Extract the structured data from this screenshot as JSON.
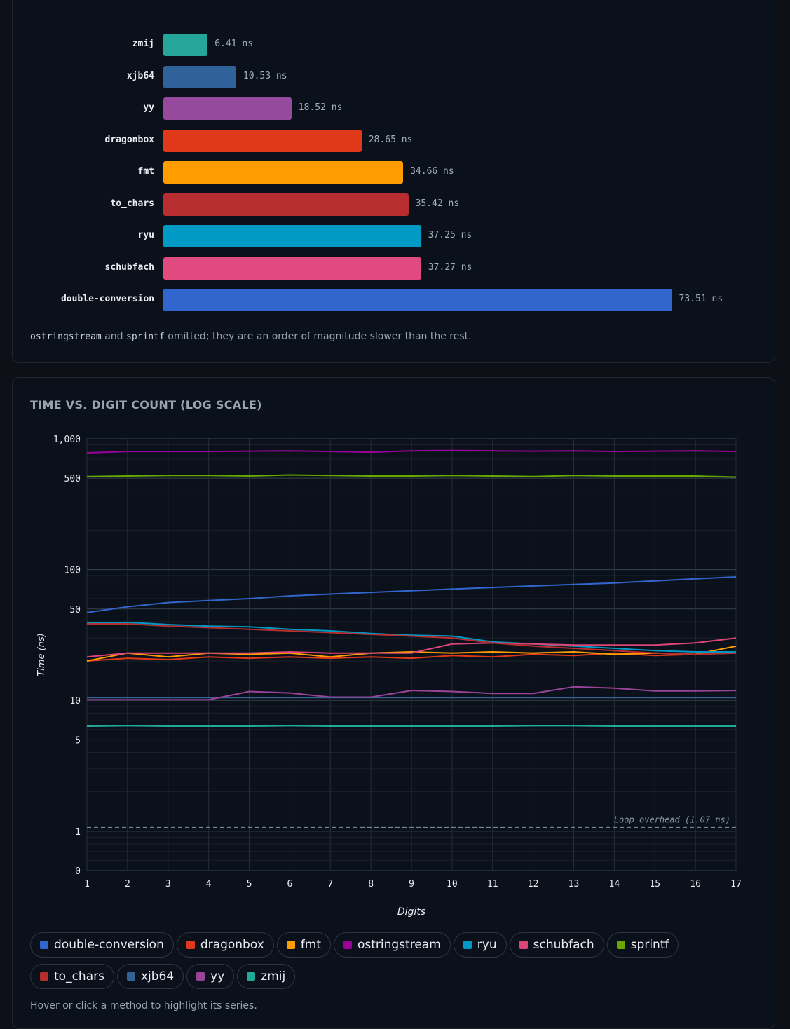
{
  "bar_chart": {
    "type": "bar",
    "orientation": "horizontal",
    "unit": "ns",
    "categories": [
      "zmij",
      "xjb64",
      "yy",
      "dragonbox",
      "fmt",
      "to_chars",
      "ryu",
      "schubfach",
      "double-conversion"
    ],
    "values": [
      6.41,
      10.53,
      18.52,
      28.65,
      34.66,
      35.42,
      37.25,
      37.27,
      73.51
    ],
    "value_labels": [
      "6.41 ns",
      "10.53 ns",
      "18.52 ns",
      "28.65 ns",
      "34.66 ns",
      "35.42 ns",
      "37.25 ns",
      "37.27 ns",
      "73.51 ns"
    ],
    "colors": [
      "#26a69a",
      "#2f6299",
      "#964a9e",
      "#e0391a",
      "#ff9d00",
      "#b82d30",
      "#009ac4",
      "#e04a7e",
      "#3366cc"
    ]
  },
  "note": {
    "code1": "ostringstream",
    "text1": " and ",
    "code2": "sprintf",
    "text2": " omitted; they are an order of magnitude slower than the rest."
  },
  "line_section_title": "TIME VS. DIGIT COUNT (LOG SCALE)",
  "chart_data": {
    "type": "line",
    "title": "TIME VS. DIGIT COUNT (LOG SCALE)",
    "xlabel": "Digits",
    "ylabel": "Time (ns)",
    "x": [
      1,
      2,
      3,
      4,
      5,
      6,
      7,
      8,
      9,
      10,
      11,
      12,
      13,
      14,
      15,
      16,
      17
    ],
    "y_scale": "log",
    "ylim": [
      0.5,
      1000
    ],
    "y_ticks": [
      {
        "value": 1000,
        "label": "1,000"
      },
      {
        "value": 500,
        "label": "500"
      },
      {
        "value": 100,
        "label": "100"
      },
      {
        "value": 50,
        "label": "50"
      },
      {
        "value": 10,
        "label": "10"
      },
      {
        "value": 5,
        "label": "5"
      },
      {
        "value": 1,
        "label": "1"
      },
      {
        "value": 0.5,
        "label": "0"
      }
    ],
    "grid": true,
    "annotation": {
      "text": "Loop overhead (1.07 ns)",
      "value": 1.07
    },
    "series": [
      {
        "name": "double-conversion",
        "color": "#3366cc",
        "values": [
          47,
          52,
          56,
          58,
          60,
          63,
          65,
          67,
          69,
          71,
          73,
          75,
          77,
          79,
          82,
          85,
          88
        ]
      },
      {
        "name": "dragonbox",
        "color": "#e0391a",
        "values": [
          20,
          21,
          20.5,
          21.5,
          21,
          21.5,
          21,
          21.5,
          21,
          22,
          21.5,
          22.5,
          22,
          23,
          22,
          22.5,
          23
        ]
      },
      {
        "name": "fmt",
        "color": "#ff9d00",
        "values": [
          20,
          23,
          21.5,
          23,
          22.5,
          23,
          21.5,
          23,
          23.5,
          23,
          23.5,
          23,
          23.5,
          22.5,
          23,
          22.5,
          26
        ]
      },
      {
        "name": "ostringstream",
        "color": "#990099",
        "values": [
          780,
          800,
          800,
          800,
          805,
          810,
          800,
          790,
          810,
          815,
          810,
          805,
          810,
          800,
          805,
          810,
          800
        ]
      },
      {
        "name": "ryu",
        "color": "#0099c6",
        "values": [
          39,
          39.5,
          38,
          37,
          36.5,
          35,
          34,
          32.5,
          31.5,
          31,
          28,
          27,
          26,
          25,
          24,
          23.5,
          23.5
        ]
      },
      {
        "name": "schubfach",
        "color": "#dd4477",
        "values": [
          21.5,
          23,
          23,
          23,
          23,
          23.5,
          23,
          23,
          23,
          27,
          27.5,
          27,
          26.5,
          26.5,
          26.5,
          27.5,
          30
        ]
      },
      {
        "name": "sprintf",
        "color": "#66aa00",
        "values": [
          515,
          520,
          525,
          525,
          520,
          530,
          525,
          520,
          520,
          525,
          520,
          515,
          525,
          520,
          520,
          520,
          510
        ]
      },
      {
        "name": "to_chars",
        "color": "#b82e2e",
        "values": [
          38.5,
          38.5,
          37,
          36,
          35,
          34,
          33,
          32,
          31,
          30,
          27.5,
          26,
          25,
          24,
          23,
          22.5,
          23
        ]
      },
      {
        "name": "xjb64",
        "color": "#316395",
        "values": [
          10.5,
          10.5,
          10.5,
          10.5,
          10.5,
          10.5,
          10.5,
          10.5,
          10.5,
          10.5,
          10.5,
          10.5,
          10.5,
          10.5,
          10.5,
          10.5,
          10.5
        ]
      },
      {
        "name": "yy",
        "color": "#994499",
        "values": [
          10.1,
          10.1,
          10.1,
          10.1,
          11.7,
          11.4,
          10.6,
          10.6,
          11.9,
          11.7,
          11.3,
          11.3,
          12.7,
          12.4,
          11.8,
          11.8,
          11.9
        ]
      },
      {
        "name": "zmij",
        "color": "#22aa99",
        "values": [
          6.35,
          6.4,
          6.35,
          6.35,
          6.35,
          6.4,
          6.35,
          6.35,
          6.35,
          6.35,
          6.35,
          6.4,
          6.4,
          6.35,
          6.35,
          6.35,
          6.35
        ]
      }
    ]
  },
  "legend_hint": "Hover or click a method to highlight its series."
}
